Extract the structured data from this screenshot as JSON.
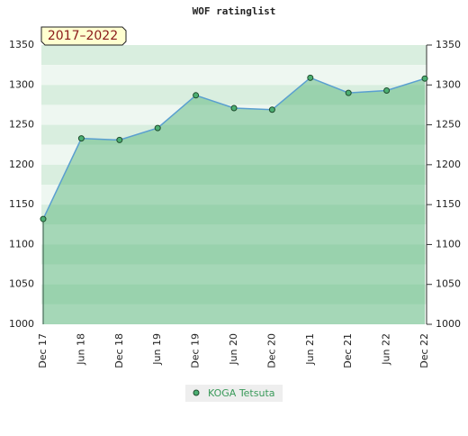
{
  "chart_data": {
    "type": "area",
    "title": "WOF ratinglist",
    "annotation": "2017–2022",
    "categories": [
      "Dec 17",
      "Jun 18",
      "Dec 18",
      "Jun 19",
      "Dec 19",
      "Jun 20",
      "Dec 20",
      "Jun 21",
      "Dec 21",
      "Jun 22",
      "Dec 22"
    ],
    "series": [
      {
        "name": "KOGA Tetsuta",
        "color": "#4caf72",
        "values": [
          1132,
          1233,
          1231,
          1246,
          1287,
          1271,
          1269,
          1309,
          1290,
          1293,
          1308
        ]
      }
    ],
    "ylim": [
      1000,
      1350
    ],
    "yticks": [
      1000,
      1050,
      1100,
      1150,
      1200,
      1250,
      1300,
      1350
    ]
  }
}
